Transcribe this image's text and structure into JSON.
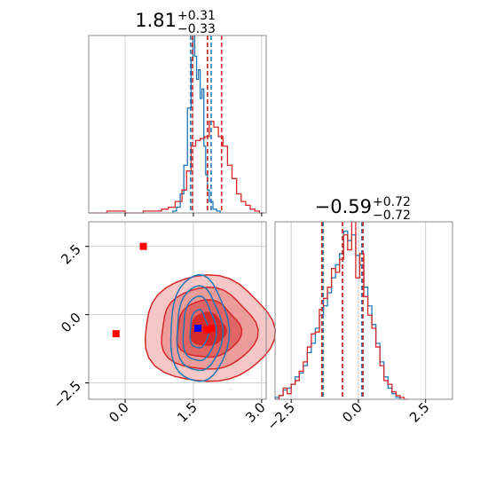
{
  "chart_data": [
    {
      "type": "histogram",
      "panel": "marginal-x",
      "title": {
        "median": "1.81",
        "plus": "+0.31",
        "minus": "−0.33"
      },
      "xlim": [
        -0.8,
        3.1
      ],
      "xticks": [
        0.0,
        1.5,
        3.0
      ],
      "grid": true,
      "series": [
        {
          "color": "#1f77b4",
          "edges": [
            1.05,
            1.13,
            1.21,
            1.29,
            1.37,
            1.45,
            1.49,
            1.53,
            1.57,
            1.61,
            1.65,
            1.69,
            1.73,
            1.77,
            1.81,
            1.85,
            1.93,
            2.01,
            2.09
          ],
          "counts": [
            1,
            3,
            10,
            25,
            55,
            80,
            93,
            82,
            70,
            75,
            60,
            65,
            35,
            20,
            12,
            6,
            2,
            1
          ]
        },
        {
          "color": "#d62728",
          "edges": [
            -0.8,
            -0.4,
            0.0,
            0.4,
            0.8,
            0.95,
            1.1,
            1.25,
            1.35,
            1.45,
            1.55,
            1.65,
            1.75,
            1.85,
            1.95,
            2.05,
            2.15,
            2.25,
            2.35,
            2.45,
            2.55,
            2.65,
            2.75,
            2.85,
            2.95,
            3.05
          ],
          "counts": [
            0,
            1,
            0,
            1,
            2,
            3,
            6,
            12,
            22,
            35,
            38,
            39,
            40,
            48,
            45,
            40,
            35,
            25,
            18,
            10,
            6,
            4,
            2,
            1,
            0
          ]
        }
      ],
      "quantile_lines": [
        {
          "color": "#1f77b4",
          "values": [
            1.44,
            1.81,
            1.89
          ]
        },
        {
          "color": "#d62728",
          "values": [
            1.48,
            1.81,
            2.12
          ]
        }
      ]
    },
    {
      "type": "histogram",
      "panel": "marginal-y",
      "title": {
        "median": "−0.59",
        "plus": "+0.72",
        "minus": "−0.72"
      },
      "xlim": [
        -3.1,
        3.5
      ],
      "xticks": [
        -2.5,
        0.0,
        2.5
      ],
      "xtick_labels": [
        "−2.5",
        "0.0",
        "2.5"
      ],
      "grid": true,
      "series": [
        {
          "color": "#1f77b4",
          "edges": [
            -3.1,
            -2.95,
            -2.8,
            -2.65,
            -2.5,
            -2.35,
            -2.2,
            -2.05,
            -1.9,
            -1.75,
            -1.6,
            -1.45,
            -1.3,
            -1.15,
            -1.0,
            -0.85,
            -0.7,
            -0.55,
            -0.4,
            -0.25,
            -0.1,
            0.05,
            0.2,
            0.35,
            0.5,
            0.65,
            0.8,
            0.95,
            1.1,
            1.25,
            1.4,
            1.55
          ],
          "counts": [
            1,
            2,
            5,
            6,
            8,
            12,
            14,
            18,
            25,
            30,
            38,
            45,
            50,
            57,
            65,
            72,
            78,
            90,
            85,
            88,
            77,
            72,
            60,
            50,
            40,
            30,
            20,
            12,
            6,
            3,
            1
          ]
        },
        {
          "color": "#d62728",
          "edges": [
            -3.1,
            -2.95,
            -2.8,
            -2.65,
            -2.5,
            -2.35,
            -2.2,
            -2.05,
            -1.9,
            -1.75,
            -1.6,
            -1.45,
            -1.3,
            -1.15,
            -1.0,
            -0.85,
            -0.7,
            -0.55,
            -0.4,
            -0.25,
            -0.1,
            0.05,
            0.2,
            0.35,
            0.5,
            0.65,
            0.8,
            0.95,
            1.1,
            1.25,
            1.4,
            1.55,
            1.7,
            1.85
          ],
          "counts": [
            0,
            2,
            6,
            3,
            8,
            10,
            15,
            20,
            28,
            35,
            36,
            48,
            54,
            60,
            70,
            68,
            75,
            88,
            80,
            95,
            65,
            78,
            55,
            45,
            38,
            28,
            18,
            10,
            8,
            4,
            2,
            1,
            0
          ]
        }
      ],
      "quantile_lines": [
        {
          "color": "#1f77b4",
          "values": [
            -1.31,
            -0.59,
            0.13
          ]
        },
        {
          "color": "#d62728",
          "values": [
            -1.36,
            -0.59,
            0.17
          ]
        }
      ]
    },
    {
      "type": "contour",
      "panel": "joint",
      "xlim": [
        -0.8,
        3.1
      ],
      "ylim": [
        -3.1,
        3.4
      ],
      "xticks": [
        0.0,
        1.5,
        3.0
      ],
      "yticks": [
        -2.5,
        0.0,
        2.5
      ],
      "ytick_labels": [
        "−2.5",
        "0.0",
        "2.5"
      ],
      "grid": true,
      "series": [
        {
          "color": "#d62728",
          "center": [
            1.81,
            -0.55
          ],
          "radii": [
            [
              1.42,
              1.95
            ],
            [
              1.05,
              1.5
            ],
            [
              0.7,
              1.05
            ],
            [
              0.38,
              0.6
            ]
          ]
        },
        {
          "color": "#1f77b4",
          "center": [
            1.62,
            -0.55
          ],
          "radii": [
            [
              0.64,
              1.95
            ],
            [
              0.5,
              1.55
            ],
            [
              0.36,
              1.18
            ],
            [
              0.2,
              0.7
            ]
          ]
        }
      ],
      "markers": [
        {
          "color": "#ff0000",
          "x": 0.4,
          "y": 2.5
        },
        {
          "color": "#ff0000",
          "x": -0.2,
          "y": -0.7
        },
        {
          "color": "#ff0000",
          "x": 1.8,
          "y": -0.55
        },
        {
          "color": "#ff0000",
          "x": 1.9,
          "y": -0.5
        },
        {
          "color": "#0000ff",
          "x": 1.6,
          "y": -0.5
        }
      ]
    }
  ]
}
